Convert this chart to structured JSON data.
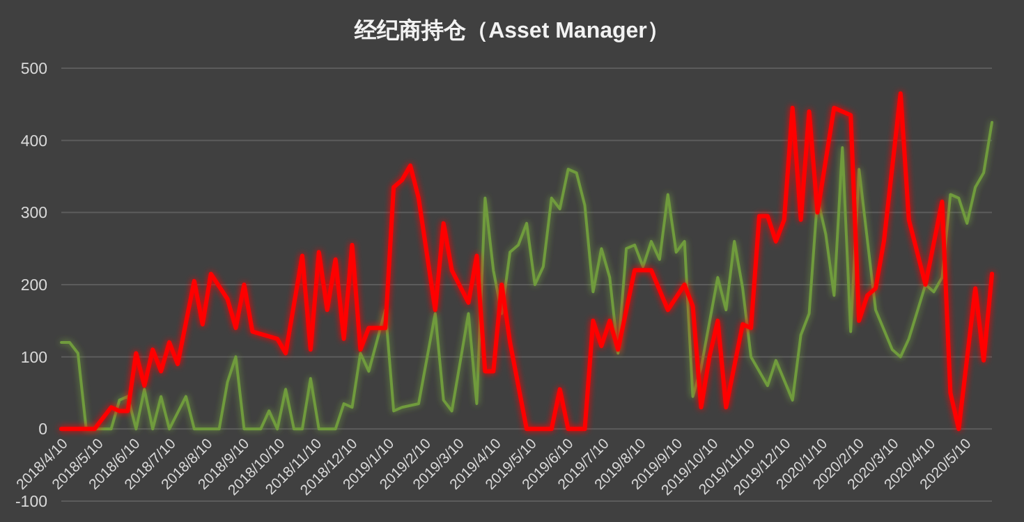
{
  "chart_data": {
    "type": "line",
    "title": "经纪商持仓（Asset Manager）",
    "xlim": [
      "2018-04-10",
      "2020-06-02"
    ],
    "ylim": [
      -100,
      500
    ],
    "yticks": [
      -100,
      0,
      100,
      200,
      300,
      400,
      500
    ],
    "xticks": [
      {
        "value": "2018-04-10",
        "label": "2018/4/10"
      },
      {
        "value": "2018-05-10",
        "label": "2018/5/10"
      },
      {
        "value": "2018-06-10",
        "label": "2018/6/10"
      },
      {
        "value": "2018-07-10",
        "label": "2018/7/10"
      },
      {
        "value": "2018-08-10",
        "label": "2018/8/10"
      },
      {
        "value": "2018-09-10",
        "label": "2018/9/10"
      },
      {
        "value": "2018-10-10",
        "label": "2018/10/10"
      },
      {
        "value": "2018-11-10",
        "label": "2018/11/10"
      },
      {
        "value": "2018-12-10",
        "label": "2018/12/10"
      },
      {
        "value": "2019-01-10",
        "label": "2019/1/10"
      },
      {
        "value": "2019-02-10",
        "label": "2019/2/10"
      },
      {
        "value": "2019-03-10",
        "label": "2019/3/10"
      },
      {
        "value": "2019-04-10",
        "label": "2019/4/10"
      },
      {
        "value": "2019-05-10",
        "label": "2019/5/10"
      },
      {
        "value": "2019-06-10",
        "label": "2019/6/10"
      },
      {
        "value": "2019-07-10",
        "label": "2019/7/10"
      },
      {
        "value": "2019-08-10",
        "label": "2019/8/10"
      },
      {
        "value": "2019-09-10",
        "label": "2019/9/10"
      },
      {
        "value": "2019-10-10",
        "label": "2019/10/10"
      },
      {
        "value": "2019-11-10",
        "label": "2019/11/10"
      },
      {
        "value": "2019-12-10",
        "label": "2019/12/10"
      },
      {
        "value": "2020-01-10",
        "label": "2020/1/10"
      },
      {
        "value": "2020-02-10",
        "label": "2020/2/10"
      },
      {
        "value": "2020-03-10",
        "label": "2020/3/10"
      },
      {
        "value": "2020-04-10",
        "label": "2020/4/10"
      },
      {
        "value": "2020-05-10",
        "label": "2020/5/10"
      }
    ],
    "grid": "y",
    "marker": "none",
    "line_style": "solid",
    "series": [
      {
        "color": "#6f9b3c",
        "x": [
          "2018-04-10",
          "2018-04-17",
          "2018-04-24",
          "2018-05-01",
          "2018-05-22",
          "2018-05-29",
          "2018-06-05",
          "2018-06-12",
          "2018-06-19",
          "2018-06-26",
          "2018-07-03",
          "2018-07-10",
          "2018-07-24",
          "2018-07-31",
          "2018-08-21",
          "2018-08-28",
          "2018-09-04",
          "2018-09-11",
          "2018-09-25",
          "2018-10-02",
          "2018-10-09",
          "2018-10-16",
          "2018-10-23",
          "2018-10-30",
          "2018-11-06",
          "2018-11-13",
          "2018-11-27",
          "2018-12-04",
          "2018-12-11",
          "2018-12-18",
          "2018-12-25",
          "2019-01-08",
          "2019-01-15",
          "2019-01-22",
          "2019-02-05",
          "2019-02-19",
          "2019-02-26",
          "2019-03-05",
          "2019-03-19",
          "2019-03-26",
          "2019-04-02",
          "2019-04-09",
          "2019-04-16",
          "2019-04-23",
          "2019-04-30",
          "2019-05-07",
          "2019-05-14",
          "2019-05-21",
          "2019-05-28",
          "2019-06-04",
          "2019-06-11",
          "2019-06-18",
          "2019-06-25",
          "2019-07-02",
          "2019-07-09",
          "2019-07-16",
          "2019-07-23",
          "2019-07-30",
          "2019-08-06",
          "2019-08-13",
          "2019-08-20",
          "2019-08-27",
          "2019-09-03",
          "2019-09-10",
          "2019-09-17",
          "2019-09-24",
          "2019-10-01",
          "2019-10-15",
          "2019-10-22",
          "2019-10-29",
          "2019-11-05",
          "2019-11-12",
          "2019-11-26",
          "2019-12-03",
          "2019-12-17",
          "2019-12-24",
          "2019-12-31",
          "2020-01-07",
          "2020-01-14",
          "2020-01-21",
          "2020-01-28",
          "2020-02-04",
          "2020-02-11",
          "2020-02-25",
          "2020-03-10",
          "2020-03-17",
          "2020-03-24",
          "2020-04-07",
          "2020-04-14",
          "2020-04-21",
          "2020-04-28",
          "2020-05-05",
          "2020-05-12",
          "2020-05-19",
          "2020-05-26",
          "2020-06-02"
        ],
        "values": [
          120,
          120,
          105,
          0,
          0,
          40,
          45,
          0,
          55,
          0,
          45,
          0,
          45,
          0,
          0,
          65,
          100,
          0,
          0,
          25,
          0,
          55,
          0,
          0,
          70,
          0,
          0,
          35,
          30,
          105,
          80,
          165,
          25,
          30,
          35,
          160,
          40,
          25,
          160,
          35,
          320,
          220,
          160,
          245,
          255,
          285,
          200,
          225,
          320,
          305,
          360,
          355,
          310,
          190,
          250,
          210,
          105,
          250,
          255,
          225,
          260,
          235,
          325,
          245,
          260,
          45,
          85,
          210,
          165,
          260,
          195,
          100,
          60,
          95,
          40,
          130,
          160,
          320,
          270,
          185,
          390,
          135,
          360,
          165,
          110,
          100,
          125,
          200,
          190,
          210,
          325,
          320,
          285,
          335,
          355,
          425
        ]
      },
      {
        "color": "#ff0000",
        "x": [
          "2018-04-10",
          "2018-05-08",
          "2018-05-22",
          "2018-05-29",
          "2018-06-05",
          "2018-06-12",
          "2018-06-19",
          "2018-06-26",
          "2018-07-03",
          "2018-07-10",
          "2018-07-17",
          "2018-07-31",
          "2018-08-07",
          "2018-08-14",
          "2018-08-28",
          "2018-09-04",
          "2018-09-11",
          "2018-09-18",
          "2018-10-09",
          "2018-10-16",
          "2018-10-30",
          "2018-11-06",
          "2018-11-13",
          "2018-11-20",
          "2018-11-27",
          "2018-12-04",
          "2018-12-11",
          "2018-12-18",
          "2018-12-25",
          "2019-01-08",
          "2019-01-15",
          "2019-01-22",
          "2019-01-29",
          "2019-02-05",
          "2019-02-19",
          "2019-02-26",
          "2019-03-05",
          "2019-03-19",
          "2019-03-26",
          "2019-04-02",
          "2019-04-09",
          "2019-04-16",
          "2019-04-23",
          "2019-05-07",
          "2019-05-28",
          "2019-06-04",
          "2019-06-11",
          "2019-06-25",
          "2019-07-02",
          "2019-07-09",
          "2019-07-16",
          "2019-07-23",
          "2019-08-06",
          "2019-08-20",
          "2019-09-03",
          "2019-09-17",
          "2019-09-24",
          "2019-10-01",
          "2019-10-08",
          "2019-10-15",
          "2019-10-22",
          "2019-11-05",
          "2019-11-12",
          "2019-11-19",
          "2019-11-26",
          "2019-12-03",
          "2019-12-10",
          "2019-12-17",
          "2019-12-24",
          "2019-12-31",
          "2020-01-07",
          "2020-01-21",
          "2020-01-28",
          "2020-02-04",
          "2020-02-11",
          "2020-02-18",
          "2020-02-25",
          "2020-03-03",
          "2020-03-17",
          "2020-03-24",
          "2020-04-07",
          "2020-04-21",
          "2020-04-28",
          "2020-05-05",
          "2020-05-19",
          "2020-05-26",
          "2020-06-02"
        ],
        "values": [
          0,
          0,
          30,
          25,
          25,
          105,
          60,
          110,
          80,
          120,
          90,
          205,
          145,
          215,
          180,
          140,
          200,
          135,
          125,
          105,
          240,
          110,
          245,
          165,
          235,
          125,
          255,
          110,
          140,
          140,
          335,
          345,
          365,
          320,
          165,
          285,
          220,
          175,
          240,
          80,
          80,
          200,
          120,
          0,
          0,
          55,
          0,
          0,
          150,
          115,
          150,
          110,
          220,
          220,
          165,
          200,
          170,
          30,
          100,
          150,
          30,
          145,
          140,
          295,
          295,
          260,
          290,
          445,
          290,
          440,
          300,
          445,
          440,
          435,
          150,
          185,
          195,
          260,
          465,
          290,
          200,
          315,
          50,
          0,
          195,
          95,
          215
        ]
      }
    ]
  }
}
